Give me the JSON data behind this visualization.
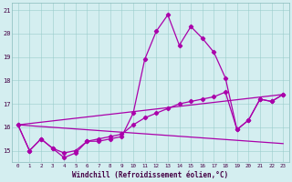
{
  "xlabel": "Windchill (Refroidissement éolien,°C)",
  "bg_color": "#d4eef0",
  "line_color": "#aa00aa",
  "xmin": -0.5,
  "xmax": 23.5,
  "ymin": 14.5,
  "ymax": 21.3,
  "yticks": [
    15,
    16,
    17,
    18,
    19,
    20,
    21
  ],
  "xticks": [
    0,
    1,
    2,
    3,
    4,
    5,
    6,
    7,
    8,
    9,
    10,
    11,
    12,
    13,
    14,
    15,
    16,
    17,
    18,
    19,
    20,
    21,
    22,
    23
  ],
  "line1_x": [
    0,
    1,
    2,
    3,
    4,
    5,
    6,
    7,
    8,
    9,
    10,
    11,
    12,
    13,
    14,
    15,
    16,
    17,
    18,
    19,
    20,
    21,
    22,
    23
  ],
  "line1_y": [
    16.1,
    15.0,
    15.5,
    15.1,
    14.7,
    14.9,
    15.4,
    15.4,
    15.5,
    15.6,
    16.6,
    18.9,
    20.1,
    20.8,
    19.5,
    20.3,
    19.8,
    19.2,
    18.1,
    15.9,
    16.3,
    17.2,
    17.1,
    17.4
  ],
  "line2_x": [
    0,
    1,
    2,
    3,
    4,
    5,
    6,
    7,
    8,
    9,
    10,
    11,
    12,
    13,
    14,
    15,
    16,
    17,
    18,
    19,
    20,
    21,
    22,
    23
  ],
  "line2_y": [
    16.1,
    15.0,
    15.5,
    15.1,
    14.9,
    15.0,
    15.4,
    15.5,
    15.6,
    15.7,
    16.1,
    16.4,
    16.6,
    16.8,
    17.0,
    17.1,
    17.2,
    17.3,
    17.5,
    15.9,
    16.3,
    17.2,
    17.1,
    17.4
  ],
  "line3_x": [
    0,
    23
  ],
  "line3_y": [
    16.1,
    17.4
  ],
  "line4_x": [
    0,
    23
  ],
  "line4_y": [
    16.1,
    15.3
  ]
}
